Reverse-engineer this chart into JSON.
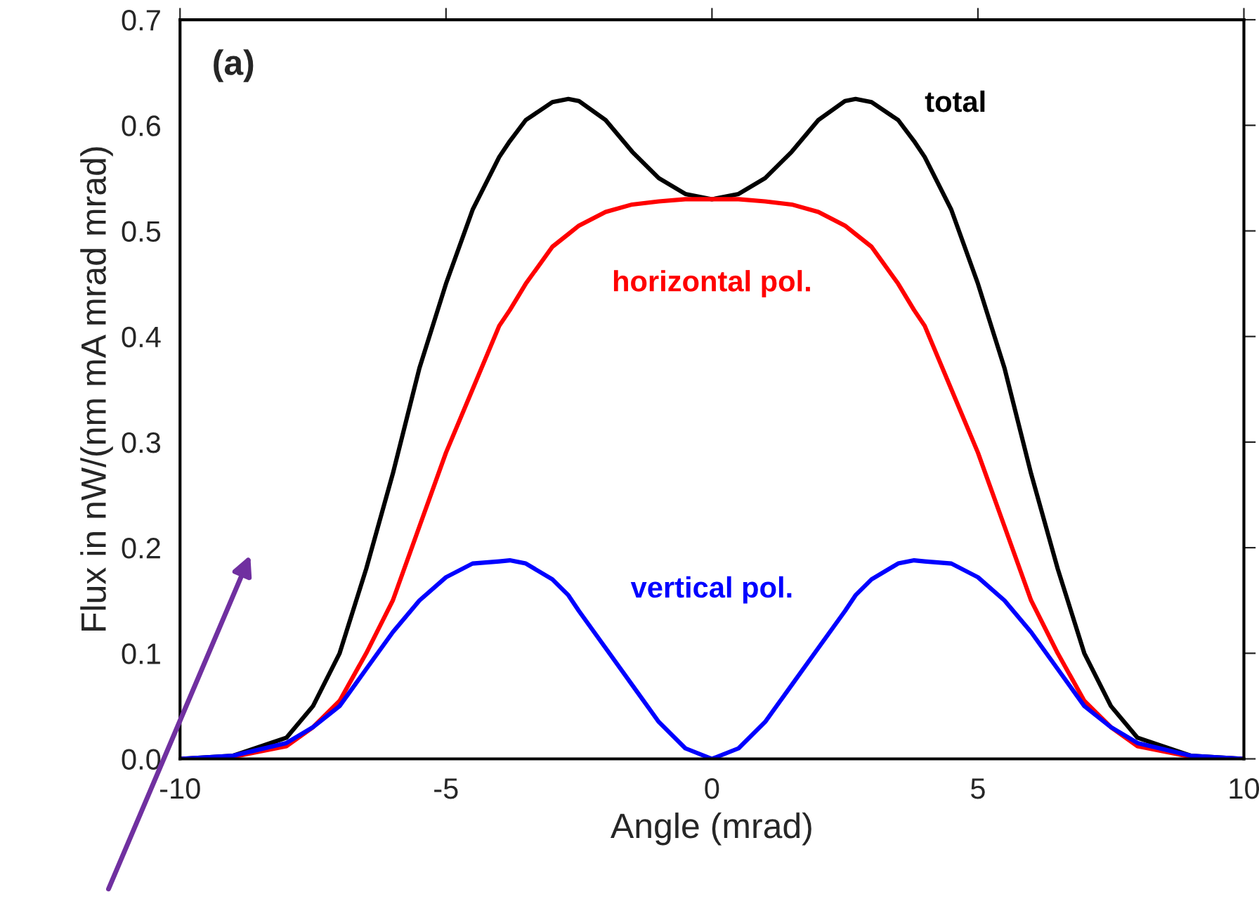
{
  "chart_data": {
    "type": "line",
    "xlabel": "Angle (mrad)",
    "ylabel": "Flux in nW/(nm mA mrad mrad)",
    "annotations": [
      "(a)"
    ],
    "xlim": [
      -10,
      10
    ],
    "ylim": [
      0,
      0.7
    ],
    "xticks": [
      -10,
      -5,
      0,
      5,
      10
    ],
    "yticks": [
      {
        "value": 0,
        "label": "0.0"
      },
      0.1,
      0.2,
      0.3,
      0.4,
      0.5,
      0.6,
      0.7
    ],
    "grid": false,
    "marker": "none",
    "line_style": "solid",
    "x": [
      -10,
      -9,
      -8,
      -7.5,
      -7,
      -6.5,
      -6,
      -5.5,
      -5,
      -4.5,
      -4,
      -3.8,
      -3.5,
      -3,
      -2.7,
      -2.5,
      -2,
      -1.5,
      -1,
      -0.5,
      0,
      0.5,
      1,
      1.5,
      2,
      2.5,
      2.7,
      3,
      3.5,
      3.8,
      4,
      4.5,
      5,
      5.5,
      6,
      6.5,
      7,
      7.5,
      8,
      9,
      10
    ],
    "series": [
      {
        "name": "total",
        "color": "#000000",
        "values": [
          0,
          0.003,
          0.02,
          0.05,
          0.1,
          0.18,
          0.27,
          0.37,
          0.45,
          0.52,
          0.57,
          0.585,
          0.605,
          0.622,
          0.625,
          0.623,
          0.605,
          0.575,
          0.55,
          0.535,
          0.53,
          0.535,
          0.55,
          0.575,
          0.605,
          0.623,
          0.625,
          0.622,
          0.605,
          0.585,
          0.57,
          0.52,
          0.45,
          0.37,
          0.27,
          0.18,
          0.1,
          0.05,
          0.02,
          0.003,
          0
        ]
      },
      {
        "name": "horizontal pol.",
        "color": "#ff0000",
        "values": [
          0,
          0.002,
          0.012,
          0.03,
          0.055,
          0.1,
          0.15,
          0.22,
          0.29,
          0.35,
          0.41,
          0.425,
          0.45,
          0.485,
          0.497,
          0.505,
          0.518,
          0.525,
          0.528,
          0.53,
          0.53,
          0.53,
          0.528,
          0.525,
          0.518,
          0.505,
          0.497,
          0.485,
          0.45,
          0.425,
          0.41,
          0.35,
          0.29,
          0.22,
          0.15,
          0.1,
          0.055,
          0.03,
          0.012,
          0.002,
          0
        ]
      },
      {
        "name": "vertical pol.",
        "color": "#0000ff",
        "values": [
          0,
          0.003,
          0.015,
          0.03,
          0.05,
          0.085,
          0.12,
          0.15,
          0.172,
          0.185,
          0.187,
          0.188,
          0.185,
          0.17,
          0.155,
          0.14,
          0.105,
          0.07,
          0.035,
          0.01,
          0,
          0.01,
          0.035,
          0.07,
          0.105,
          0.14,
          0.155,
          0.17,
          0.185,
          0.188,
          0.187,
          0.185,
          0.172,
          0.15,
          0.12,
          0.085,
          0.05,
          0.03,
          0.015,
          0.003,
          0
        ]
      }
    ]
  }
}
